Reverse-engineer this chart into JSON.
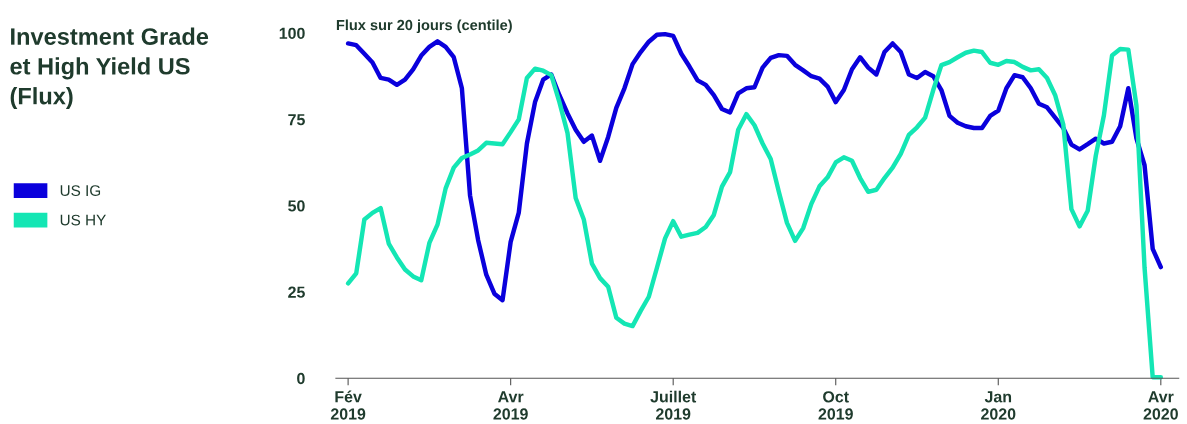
{
  "chart_data": {
    "type": "line",
    "title": "Investment Grade\net High Yield US\n(Flux)",
    "ylabel": "Flux sur 20 jours (centile)",
    "categories": [
      "Fév\n2019",
      null,
      null,
      null,
      null,
      null,
      null,
      null,
      null,
      null,
      null,
      null,
      null,
      null,
      null,
      null,
      null,
      null,
      null,
      null,
      "Avr\n2019",
      null,
      null,
      null,
      null,
      null,
      null,
      null,
      null,
      null,
      null,
      null,
      null,
      null,
      null,
      null,
      null,
      null,
      null,
      null,
      "Juillet\n2019",
      null,
      null,
      null,
      null,
      null,
      null,
      null,
      null,
      null,
      null,
      null,
      null,
      null,
      null,
      null,
      null,
      null,
      null,
      null,
      "Oct\n2019",
      null,
      null,
      null,
      null,
      null,
      null,
      null,
      null,
      null,
      null,
      null,
      null,
      null,
      null,
      null,
      null,
      null,
      null,
      null,
      "Jan\n2020",
      null,
      null,
      null,
      null,
      null,
      null,
      null,
      null,
      null,
      null,
      null,
      null,
      null,
      null,
      null,
      null,
      null,
      null,
      null,
      "Avr\n2020"
    ],
    "ylim": [
      0,
      100
    ],
    "yticks": [
      0,
      25,
      50,
      75,
      100
    ],
    "grid": false,
    "legend": "left",
    "marker": "none",
    "line_style": "solid",
    "series": [
      {
        "name": "US IG",
        "color": "#0a00dc",
        "values": [
          97,
          96.5,
          94,
          91.5,
          87,
          86.5,
          85,
          86.5,
          89.5,
          93.5,
          96,
          97.6,
          96,
          93,
          84,
          53,
          40,
          30,
          24.5,
          22.6,
          39.5,
          48,
          68,
          80,
          86.5,
          88,
          82,
          76.7,
          72,
          68.5,
          70.3,
          63,
          69.9,
          78.3,
          84,
          91,
          94.5,
          97.5,
          99.5,
          99.7,
          99.2,
          94,
          90.3,
          86.3,
          85,
          82,
          78,
          77,
          82.5,
          84,
          84.3,
          90,
          92.8,
          93.6,
          93.4,
          90.8,
          89.2,
          87.5,
          86.8,
          84.5,
          80,
          83.5,
          89.5,
          93,
          90,
          88,
          94.5,
          97,
          94.5,
          88,
          87,
          88.7,
          87.5,
          83.5,
          76,
          74,
          73,
          72.5,
          72.5,
          76,
          77.5,
          84,
          87.8,
          87.2,
          84,
          79.5,
          78.5,
          75.5,
          72.5,
          67.7,
          66.3,
          67.8,
          69.4,
          68,
          68.5,
          73,
          84,
          69.5,
          61.7,
          37.5,
          32.2
        ]
      },
      {
        "name": "US HY",
        "color": "#14e6b4",
        "values": [
          27.5,
          30.4,
          46,
          47.9,
          49.3,
          39,
          35,
          31.5,
          29.5,
          28.4,
          39.2,
          44.5,
          55,
          61,
          63.8,
          64.8,
          66,
          68.2,
          68,
          67.8,
          71.3,
          75,
          87,
          89.7,
          89.1,
          87.8,
          80,
          71,
          52.2,
          46,
          33.2,
          29,
          26.5,
          17.5,
          15.8,
          15.1,
          19.5,
          23.6,
          32,
          40.5,
          45.5,
          41,
          41.6,
          42.1,
          43.8,
          47.3,
          55.5,
          59.7,
          72,
          76.5,
          73.3,
          68,
          63.5,
          54,
          45,
          39.8,
          43.5,
          50.5,
          55.6,
          58.2,
          62.5,
          64,
          63,
          58,
          54,
          54.6,
          58,
          61,
          65,
          70.5,
          72.7,
          75.5,
          83.5,
          90.7,
          91.6,
          93,
          94.3,
          94.9,
          94.5,
          91.4,
          90.8,
          91.9,
          91.6,
          90.2,
          89.2,
          89.5,
          87,
          82,
          73.5,
          49,
          44,
          48.5,
          64.5,
          76.2,
          93.5,
          95.4,
          95.2,
          79,
          32,
          0.3,
          0.3
        ]
      }
    ]
  }
}
